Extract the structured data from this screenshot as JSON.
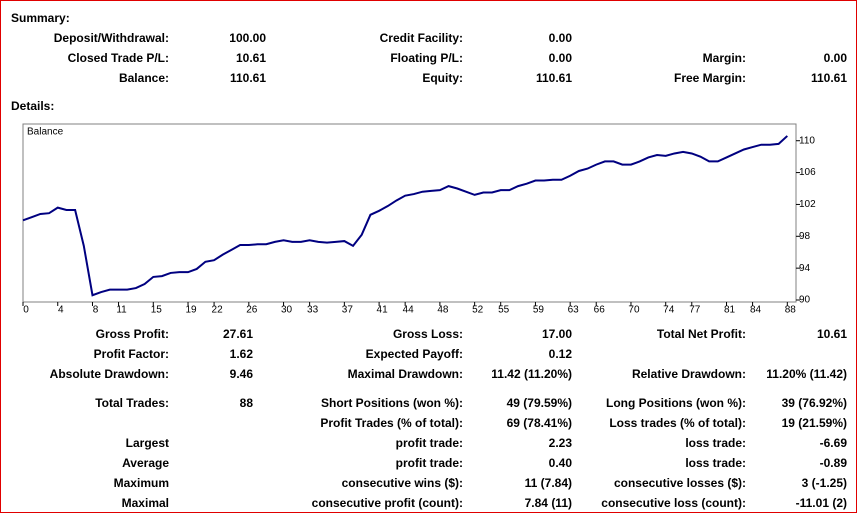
{
  "summary": {
    "title": "Summary:",
    "rows": [
      [
        "Deposit/Withdrawal:",
        "100.00",
        "Credit Facility:",
        "0.00",
        null,
        null
      ],
      [
        "Closed Trade P/L:",
        "10.61",
        "Floating P/L:",
        "0.00",
        "Margin:",
        "0.00"
      ],
      [
        "Balance:",
        "110.61",
        "Equity:",
        "110.61",
        "Free Margin:",
        "110.61"
      ]
    ]
  },
  "details": {
    "title": "Details:",
    "rows": [
      [
        "Gross Profit:",
        "27.61",
        "Gross Loss:",
        "17.00",
        "Total Net Profit:",
        "10.61"
      ],
      [
        "Profit Factor:",
        "1.62",
        "Expected Payoff:",
        "0.12",
        null,
        null
      ],
      [
        "Absolute Drawdown:",
        "9.46",
        "Maximal Drawdown:",
        "11.42 (11.20%)",
        "Relative Drawdown:",
        "11.20% (11.42)"
      ],
      [
        "Total Trades:",
        "88",
        "Short Positions (won %):",
        "49 (79.59%)",
        "Long Positions (won %):",
        "39 (76.92%)"
      ],
      [
        null,
        null,
        "Profit Trades (% of total):",
        "69 (78.41%)",
        "Loss trades (% of total):",
        "19 (21.59%)"
      ],
      [
        "Largest",
        null,
        "profit trade:",
        "2.23",
        "loss trade:",
        "-6.69"
      ],
      [
        "Average",
        null,
        "profit trade:",
        "0.40",
        "loss trade:",
        "-0.89"
      ],
      [
        "Maximum",
        null,
        "consecutive wins ($):",
        "11 (7.84)",
        "consecutive losses ($):",
        "3 (-1.25)"
      ],
      [
        "Maximal",
        null,
        "consecutive profit (count):",
        "7.84 (11)",
        "consecutive loss (count):",
        "-11.01 (2)"
      ]
    ]
  },
  "chart_data": {
    "type": "line",
    "x": [
      0,
      1,
      2,
      3,
      4,
      5,
      6,
      7,
      8,
      9,
      10,
      11,
      12,
      13,
      14,
      15,
      16,
      17,
      18,
      19,
      20,
      21,
      22,
      23,
      24,
      25,
      26,
      27,
      28,
      29,
      30,
      31,
      32,
      33,
      34,
      35,
      36,
      37,
      38,
      39,
      40,
      41,
      42,
      43,
      44,
      45,
      46,
      47,
      48,
      49,
      50,
      51,
      52,
      53,
      54,
      55,
      56,
      57,
      58,
      59,
      60,
      61,
      62,
      63,
      64,
      65,
      66,
      67,
      68,
      69,
      70,
      71,
      72,
      73,
      74,
      75,
      76,
      77,
      78,
      79,
      80,
      81,
      82,
      83,
      84,
      85,
      86,
      87,
      88
    ],
    "series": [
      {
        "name": "Balance",
        "color": "#000080",
        "values": [
          100.0,
          100.4,
          100.8,
          100.9,
          101.6,
          101.3,
          101.3,
          96.8,
          90.6,
          91.0,
          91.3,
          91.3,
          91.3,
          91.5,
          92.0,
          92.9,
          93.0,
          93.4,
          93.5,
          93.5,
          93.9,
          94.8,
          95.0,
          95.7,
          96.3,
          96.9,
          96.9,
          97.0,
          97.0,
          97.3,
          97.5,
          97.3,
          97.3,
          97.5,
          97.3,
          97.2,
          97.3,
          97.4,
          96.8,
          98.2,
          100.7,
          101.2,
          101.8,
          102.5,
          103.1,
          103.3,
          103.6,
          103.7,
          103.8,
          104.3,
          104.0,
          103.6,
          103.2,
          103.5,
          103.5,
          103.8,
          103.8,
          104.3,
          104.6,
          105.0,
          105.0,
          105.1,
          105.1,
          105.6,
          106.2,
          106.5,
          107.0,
          107.4,
          107.4,
          107.0,
          107.0,
          107.4,
          107.9,
          108.2,
          108.1,
          108.4,
          108.6,
          108.4,
          108.0,
          107.4,
          107.4,
          107.9,
          108.4,
          108.9,
          109.2,
          109.5,
          109.5,
          109.6,
          110.6
        ]
      }
    ],
    "xlim": [
      0,
      89
    ],
    "xticks": [
      0,
      4,
      8,
      11,
      15,
      19,
      22,
      26,
      30,
      33,
      37,
      41,
      44,
      48,
      52,
      55,
      59,
      63,
      66,
      70,
      74,
      77,
      81,
      84,
      88
    ],
    "ylim": [
      89.75,
      112.1
    ],
    "yticks": [
      90,
      94,
      98,
      102,
      106,
      110
    ]
  }
}
